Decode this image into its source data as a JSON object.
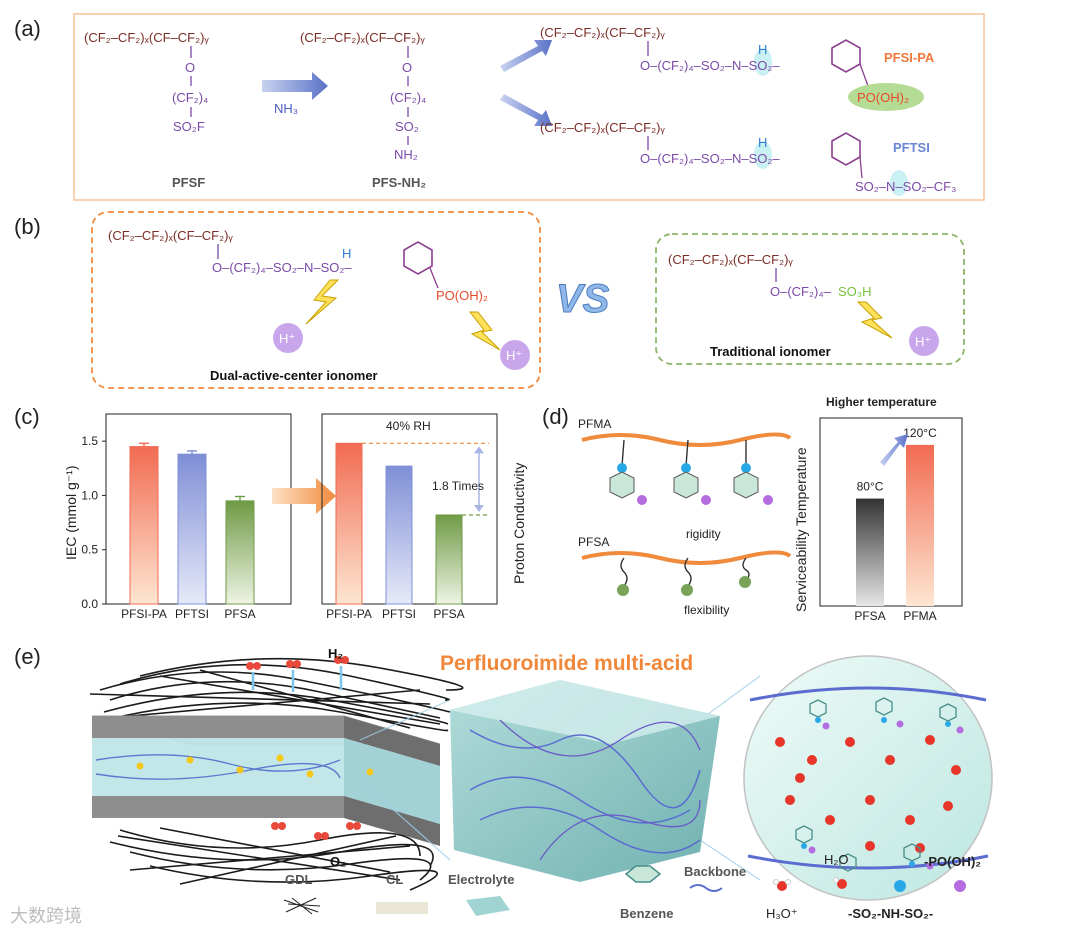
{
  "panels": {
    "a": "(a)",
    "b": "(b)",
    "c": "(c)",
    "d": "(d)",
    "e": "(e)"
  },
  "panel_a": {
    "backbone": "(CF₂–CF₂)ₓ(CF–CF₂)ᵧ",
    "pfsf_side1": "O",
    "pfsf_side2": "(CF₂)₄",
    "pfsf_side3": "SO₂F",
    "pfsf_name": "PFSF",
    "reagent": "NH₃",
    "pfsnh2_side3": "SO₂",
    "pfsnh2_side4": "NH₂",
    "pfsnh2_name": "PFS-NH₂",
    "sidechain": "O–(CF₂)₄–SO₂–N–SO₂–",
    "nh_h": "H",
    "pa_group": "PO(OH)₂",
    "pfsipa_name": "PFSI-PA",
    "tsi_group": "SO₂–N–SO₂–CF₃",
    "pftsi_name": "PFTSI"
  },
  "panel_b": {
    "dual_label": "Dual-active-center ionomer",
    "trad_label": "Traditional ionomer",
    "vs": "VS",
    "proton": "H⁺",
    "so3h": "SO₃H",
    "trad_side": "O–(CF₂)₄–"
  },
  "chart_data": {
    "type": "bar",
    "left": {
      "categories": [
        "PFSI-PA",
        "PFTSI",
        "PFSA"
      ],
      "values": [
        1.45,
        1.38,
        0.95
      ],
      "errors": [
        0.03,
        0.03,
        0.04
      ],
      "ylabel": "IEC (mmol g⁻¹)",
      "ylim": [
        0,
        1.75
      ],
      "yticks": [
        "0.0",
        "0.5",
        "1.0",
        "1.5"
      ]
    },
    "right": {
      "title": "40% RH",
      "categories": [
        "PFSI-PA",
        "PFTSI",
        "PFSA"
      ],
      "values": [
        1.48,
        1.27,
        0.82
      ],
      "ylabel": "Proton Conductivity",
      "annotation": "1.8 Times"
    },
    "colors": [
      "#f26b52",
      "#7f8fd6",
      "#6f9a45"
    ]
  },
  "panel_d": {
    "pfma": "PFMA",
    "pfsa": "PFSA",
    "rigidity": "rigidity",
    "flexibility": "flexibility",
    "chart_title": "Higher temperature",
    "ylabel": "Serviceability Temperature",
    "categories": [
      "PFSA",
      "PFMA"
    ],
    "values": [
      80,
      120
    ],
    "value_labels": [
      "80°C",
      "120°C"
    ]
  },
  "panel_e": {
    "title": "Perfluoroimide multi-acid",
    "h2": "H₂",
    "o2": "O₂",
    "legend": {
      "gdl": "GDL",
      "cl": "CL",
      "electrolyte": "Electrolyte",
      "benzene": "Benzene",
      "backbone": "Backbone",
      "h2o": "H₂O",
      "h3o": "H₃O⁺",
      "po": "-PO(OH)₂",
      "sns": "-SO₂-NH-SO₂-"
    }
  },
  "watermark": "大数跨境"
}
